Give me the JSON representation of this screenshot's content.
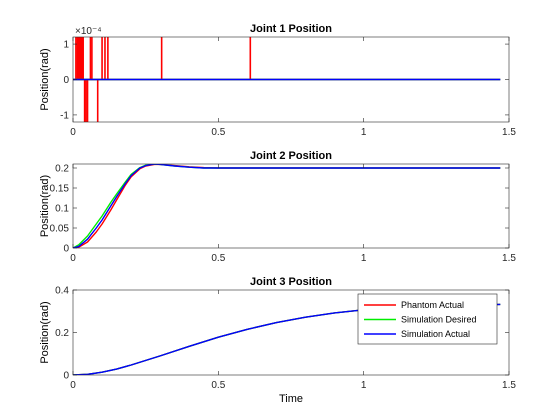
{
  "chart_data": [
    {
      "type": "line",
      "title": "Joint 1 Position",
      "xlabel": "",
      "ylabel": "Position(rad)",
      "xlim": [
        0,
        1.5
      ],
      "ylim": [
        -1.2,
        1.2
      ],
      "y_exponent_label": "×10⁻⁴",
      "xticks": [
        0,
        0.5,
        1,
        1.5
      ],
      "yticks": [
        -1,
        0,
        1
      ],
      "xtick_labels": [
        "0",
        "0.5",
        "1",
        "1.5"
      ],
      "ytick_labels": [
        "-1",
        "0",
        "1"
      ],
      "series": [
        {
          "name": "Phantom Actual",
          "color": "#ff0000",
          "spikes": [
            [
              0.01,
              1.2
            ],
            [
              0.015,
              1.2
            ],
            [
              0.02,
              1.2
            ],
            [
              0.025,
              1.2
            ],
            [
              0.03,
              1.2
            ],
            [
              0.035,
              1.2
            ],
            [
              0.04,
              -1.2
            ],
            [
              0.045,
              -1.2
            ],
            [
              0.05,
              -1.2
            ],
            [
              0.06,
              1.2
            ],
            [
              0.065,
              1.2
            ],
            [
              0.085,
              -1.2
            ],
            [
              0.1,
              1.2
            ],
            [
              0.11,
              1.2
            ],
            [
              0.12,
              1.2
            ],
            [
              0.305,
              1.2
            ],
            [
              0.61,
              1.2
            ]
          ],
          "x": [
            0,
            1.47
          ],
          "y": [
            0,
            0
          ]
        },
        {
          "name": "Simulation Desired",
          "color": "#00cc00",
          "x": [
            0,
            1.47
          ],
          "y": [
            0,
            0
          ]
        },
        {
          "name": "Simulation Actual",
          "color": "#0000ff",
          "x": [
            0,
            1.47
          ],
          "y": [
            0,
            0
          ]
        }
      ]
    },
    {
      "type": "line",
      "title": "Joint 2 Position",
      "xlabel": "",
      "ylabel": "Position(rad)",
      "xlim": [
        0,
        1.5
      ],
      "ylim": [
        0,
        0.21
      ],
      "xticks": [
        0,
        0.5,
        1,
        1.5
      ],
      "yticks": [
        0,
        0.05,
        0.1,
        0.15,
        0.2
      ],
      "xtick_labels": [
        "0",
        "0.5",
        "1",
        "1.5"
      ],
      "ytick_labels": [
        "0",
        "0.05",
        "0.1",
        "0.15",
        "0.2"
      ],
      "series": [
        {
          "name": "Phantom Actual",
          "color": "#ff0000",
          "x": [
            0,
            0.02,
            0.05,
            0.08,
            0.1,
            0.13,
            0.15,
            0.18,
            0.2,
            0.23,
            0.25,
            0.28,
            0.3,
            0.35,
            0.4,
            0.45,
            0.5,
            0.6,
            0.8,
            1.0,
            1.2,
            1.47
          ],
          "y": [
            0,
            0.002,
            0.015,
            0.04,
            0.06,
            0.095,
            0.12,
            0.157,
            0.178,
            0.198,
            0.205,
            0.209,
            0.209,
            0.206,
            0.203,
            0.201,
            0.2,
            0.2,
            0.2,
            0.2,
            0.2,
            0.2
          ]
        },
        {
          "name": "Simulation Desired",
          "color": "#00ee00",
          "x": [
            0,
            0.02,
            0.05,
            0.08,
            0.1,
            0.13,
            0.15,
            0.18,
            0.2,
            0.23,
            0.25,
            0.28,
            0.3,
            0.35,
            0.4,
            0.45,
            0.5,
            0.6,
            0.8,
            1.0,
            1.2,
            1.47
          ],
          "y": [
            0,
            0.008,
            0.03,
            0.06,
            0.08,
            0.114,
            0.135,
            0.165,
            0.184,
            0.201,
            0.207,
            0.21,
            0.209,
            0.205,
            0.202,
            0.2,
            0.2,
            0.2,
            0.2,
            0.2,
            0.2,
            0.2
          ]
        },
        {
          "name": "Simulation Actual",
          "color": "#0000ff",
          "x": [
            0,
            0.02,
            0.05,
            0.08,
            0.1,
            0.13,
            0.15,
            0.18,
            0.2,
            0.23,
            0.25,
            0.28,
            0.3,
            0.35,
            0.4,
            0.45,
            0.5,
            0.6,
            0.8,
            1.0,
            1.2,
            1.47
          ],
          "y": [
            0,
            0.004,
            0.022,
            0.05,
            0.07,
            0.105,
            0.128,
            0.161,
            0.181,
            0.2,
            0.206,
            0.21,
            0.209,
            0.205,
            0.202,
            0.2,
            0.2,
            0.2,
            0.2,
            0.2,
            0.2,
            0.2
          ]
        }
      ]
    },
    {
      "type": "line",
      "title": "Joint 3 Position",
      "xlabel": "Time",
      "ylabel": "Position(rad)",
      "xlim": [
        0,
        1.5
      ],
      "ylim": [
        0,
        0.4
      ],
      "xticks": [
        0,
        0.5,
        1,
        1.5
      ],
      "yticks": [
        0,
        0.2,
        0.4
      ],
      "xtick_labels": [
        "0",
        "0.5",
        "1",
        "1.5"
      ],
      "ytick_labels": [
        "0",
        "0.2",
        "0.4"
      ],
      "legend": {
        "location": "top-right",
        "entries": [
          "Phantom Actual",
          "Simulation Desired",
          "Simulation Actual"
        ]
      },
      "series": [
        {
          "name": "Phantom Actual",
          "color": "#ff0000",
          "x": [
            0,
            0.05,
            0.1,
            0.15,
            0.2,
            0.3,
            0.4,
            0.5,
            0.6,
            0.7,
            0.8,
            0.9,
            1.0,
            1.1,
            1.2,
            1.3,
            1.47
          ],
          "y": [
            0,
            0.003,
            0.013,
            0.028,
            0.047,
            0.09,
            0.135,
            0.178,
            0.215,
            0.247,
            0.272,
            0.292,
            0.307,
            0.317,
            0.324,
            0.328,
            0.332
          ]
        },
        {
          "name": "Simulation Desired",
          "color": "#00ee00",
          "x": [
            0,
            0.05,
            0.1,
            0.15,
            0.2,
            0.3,
            0.4,
            0.5,
            0.6,
            0.7,
            0.8,
            0.9,
            1.0,
            1.1,
            1.2,
            1.3,
            1.47
          ],
          "y": [
            0,
            0.003,
            0.013,
            0.028,
            0.047,
            0.09,
            0.135,
            0.178,
            0.215,
            0.247,
            0.272,
            0.292,
            0.307,
            0.317,
            0.324,
            0.328,
            0.332
          ]
        },
        {
          "name": "Simulation Actual",
          "color": "#0000ff",
          "x": [
            0,
            0.05,
            0.1,
            0.15,
            0.2,
            0.3,
            0.4,
            0.5,
            0.6,
            0.7,
            0.8,
            0.9,
            1.0,
            1.1,
            1.2,
            1.3,
            1.47
          ],
          "y": [
            0,
            0.003,
            0.013,
            0.028,
            0.047,
            0.09,
            0.135,
            0.178,
            0.215,
            0.247,
            0.272,
            0.292,
            0.307,
            0.317,
            0.324,
            0.328,
            0.332
          ]
        }
      ]
    }
  ]
}
